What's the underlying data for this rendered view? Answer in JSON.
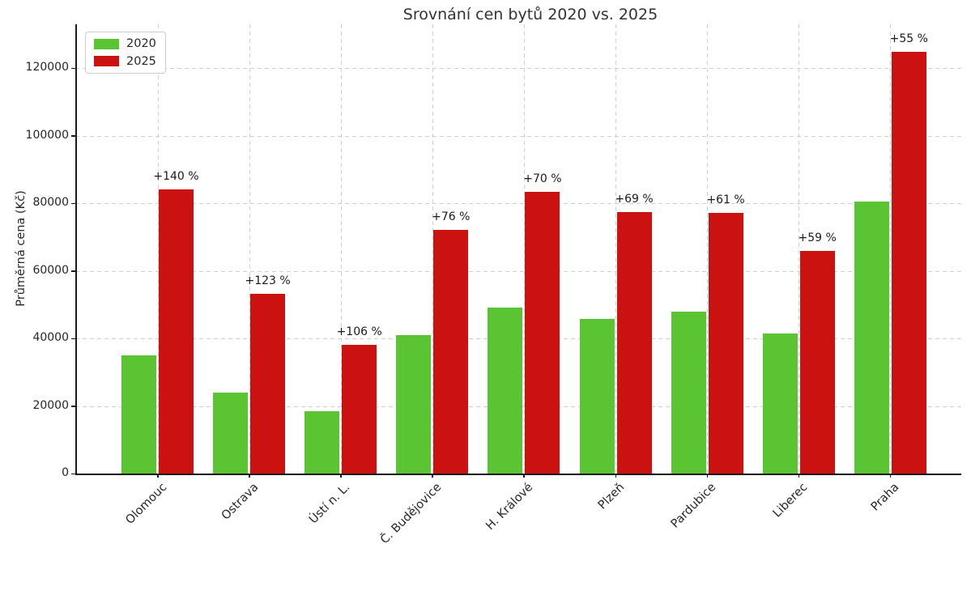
{
  "title": "Srovnání cen bytů 2020 vs. 2025",
  "chart_data": {
    "type": "bar",
    "title": "Srovnání cen bytů 2020 vs. 2025",
    "xlabel": "",
    "ylabel": "Průměrná cena (Kč)",
    "categories": [
      "Olomouc",
      "Ostrava",
      "Ústí n. L.",
      "Č. Budějovice",
      "H. Králové",
      "Plzeň",
      "Pardubice",
      "Liberec",
      "Praha"
    ],
    "series": [
      {
        "name": "2020",
        "color": "#5ac432",
        "values": [
          35000,
          23900,
          18500,
          41000,
          49100,
          45800,
          47900,
          41500,
          80600
        ]
      },
      {
        "name": "2025",
        "color": "#cc1111",
        "values": [
          84000,
          53300,
          38100,
          72200,
          83500,
          77400,
          77100,
          66000,
          124900
        ]
      }
    ],
    "annotations": [
      "+140 %",
      "+123 %",
      "+106 %",
      "+76 %",
      "+70 %",
      "+69 %",
      "+61 %",
      "+59 %",
      "+55 %"
    ],
    "yticks": [
      0,
      20000,
      40000,
      60000,
      80000,
      100000,
      120000
    ],
    "ylim": [
      0,
      133000
    ],
    "grid": "dashed, both axes, behind bars",
    "legend_position": "upper left",
    "colors": {
      "grid": "#cfcfcf",
      "spine": "#1a1a1a",
      "text": "#262626",
      "title": "#333333"
    }
  }
}
